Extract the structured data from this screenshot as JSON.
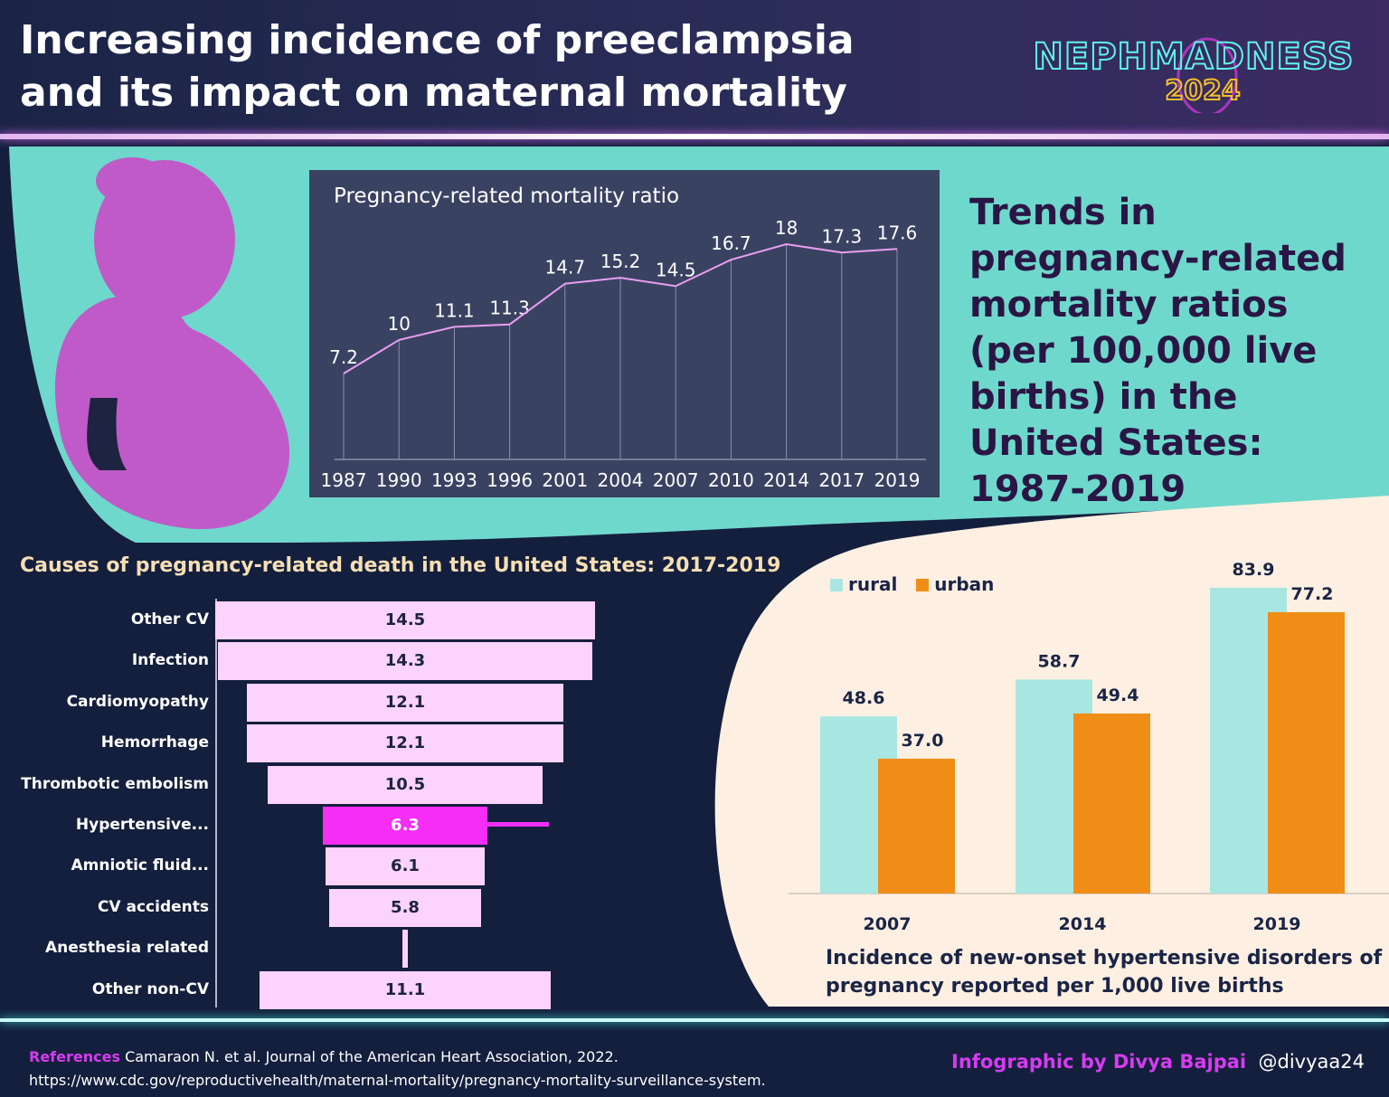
{
  "header": {
    "title_line1": "Increasing incidence of preeclampsia",
    "title_line2": "and its impact on maternal mortality",
    "logo_line1": "NEPHMADNESS",
    "logo_line2": "2024"
  },
  "trend_text": "Trends in pregnancy-related mortality ratios (per 100,000 live births) in the United States: 1987-2019",
  "colors": {
    "teal": "#6fd8cc",
    "cream": "#fdf0e2",
    "navy": "#141f3d",
    "magenta": "#f52df5",
    "pink_bar": "#fbd3fd",
    "rural": "#a8e6e2",
    "urban": "#ef8d17",
    "silhouette": "#c05ac8"
  },
  "chart_data": [
    {
      "type": "line",
      "title": "Pregnancy-related mortality ratio",
      "categories": [
        "1987",
        "1990",
        "1993",
        "1996",
        "2001",
        "2004",
        "2007",
        "2010",
        "2014",
        "2017",
        "2019"
      ],
      "values": [
        7.2,
        10,
        11.1,
        11.3,
        14.7,
        15.2,
        14.5,
        16.7,
        18,
        17.3,
        17.6
      ],
      "labels": [
        "7.2",
        "10",
        "11.1",
        "11.3",
        "14.7",
        "15.2",
        "14.5",
        "16.7",
        "18",
        "17.3",
        "17.6"
      ],
      "xlabel": "",
      "ylabel": "",
      "ylim": [
        0,
        20
      ]
    },
    {
      "type": "bar",
      "orientation": "horizontal-funnel",
      "title": "Causes of pregnancy-related death in the United States: 2017-2019",
      "categories": [
        "Other CV",
        "Infection",
        "Cardiomyopathy",
        "Hemorrhage",
        "Thrombotic embolism",
        "Hypertensive...",
        "Amniotic fluid...",
        "CV accidents",
        "Anesthesia related",
        "Other non-CV"
      ],
      "values": [
        14.5,
        14.3,
        12.1,
        12.1,
        10.5,
        6.3,
        6.1,
        5.8,
        0.2,
        11.1
      ],
      "labels": [
        "14.5",
        "14.3",
        "12.1",
        "12.1",
        "10.5",
        "6.3",
        "6.1",
        "5.8",
        "",
        "11.1"
      ],
      "highlight": "Hypertensive..."
    },
    {
      "type": "bar",
      "title": "Incidence of new-onset hypertensive disorders of pregnancy reported per 1,000 live births",
      "categories": [
        "2007",
        "2014",
        "2019"
      ],
      "series": [
        {
          "name": "rural",
          "values": [
            48.6,
            58.7,
            83.9
          ],
          "labels": [
            "48.6",
            "58.7",
            "83.9"
          ]
        },
        {
          "name": "urban",
          "values": [
            37.0,
            49.4,
            77.2
          ],
          "labels": [
            "37.0",
            "49.4",
            "77.2"
          ]
        }
      ],
      "legend": "top-left",
      "ylim": [
        0,
        90
      ]
    }
  ],
  "footer": {
    "refs_label": "References",
    "ref1": "Camaraon N. et al. Journal of the American Heart Association, 2022.",
    "ref2": "https://www.cdc.gov/reproductivehealth/maternal-mortality/pregnancy-mortality-surveillance-system.",
    "credit_label": "Infographic by Divya Bajpai",
    "credit_handle": "@divyaa24"
  }
}
